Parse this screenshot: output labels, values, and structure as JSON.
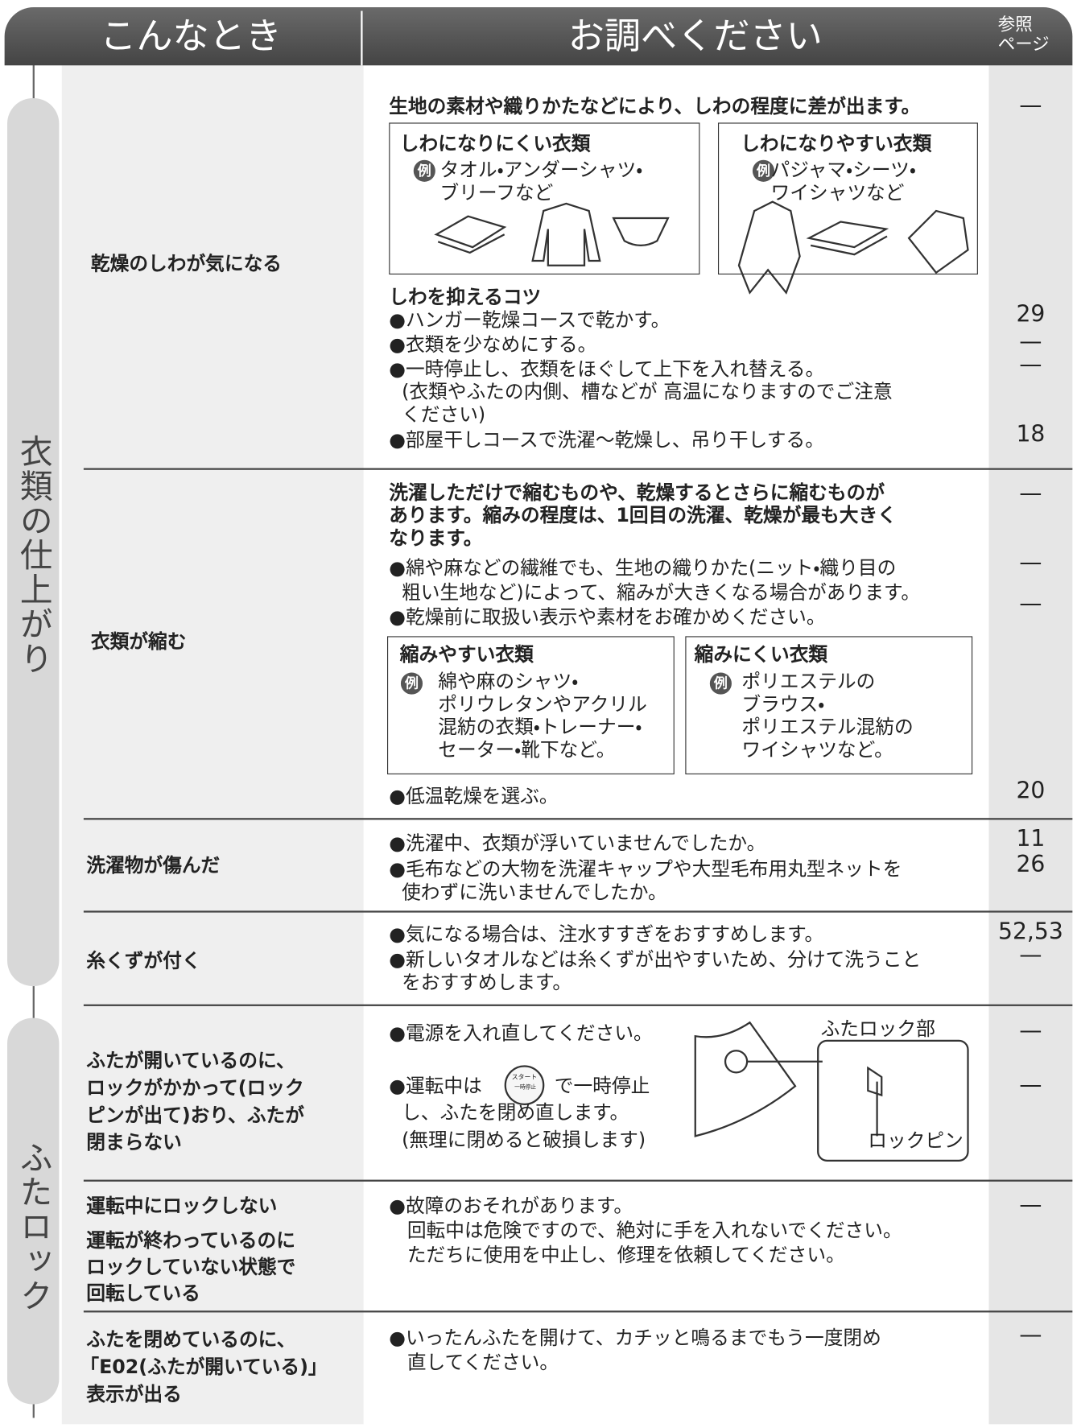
{
  "header": {
    "situation": "こんなとき",
    "check": "お調べください",
    "ref": [
      "参照",
      "ページ"
    ]
  },
  "tabs": [
    "衣類の仕上がり",
    "ふたロック"
  ],
  "rows": [
    {
      "problem": [
        "乾燥のしわが気になる"
      ],
      "intro": [
        "生地の素材や織りかたなどにより、しわの程度に差が出ます。"
      ],
      "boxes": [
        {
          "title": "しわになりにくい衣類",
          "example": "例",
          "lines": [
            "タオル・アンダーシャツ・",
            "ブリーフなど"
          ]
        },
        {
          "title": "しわになりやすい衣類",
          "example": "例",
          "lines": [
            "パジャマ・シーツ・",
            "ワイシャツなど"
          ]
        }
      ],
      "tips_title": "しわを抑えるコツ",
      "items": [
        [
          "●ハンガー乾燥コースで乾かす。"
        ],
        [
          "●衣類を少なめにする。"
        ],
        [
          "●一時停止し、衣類をほぐして上下を入れ替える。",
          "(衣類やふたの内側、槽などが 高温になりますのでご注意",
          "ください)"
        ],
        [
          "●部屋干しコースで洗濯～乾燥し、吊り干しする。"
        ]
      ],
      "refs": [
        "—",
        29,
        "—",
        "—",
        18
      ]
    },
    {
      "problem": [
        "衣類が縮む"
      ],
      "intro": [
        "洗濯しただけで縮むものや、乾燥するとさらに縮むものが",
        "あります。縮みの程度は、1回目の洗濯、乾燥が最も大きく",
        "なります。"
      ],
      "items": [
        [
          "●綿や麻などの繊維でも、生地の織りかた(ニット・織り目の",
          "粗い生地など)によって、縮みが大きくなる場合があります。"
        ],
        [
          "●乾燥前に取扱い表示や素材をお確かめください。"
        ],
        [
          "●低温乾燥を選ぶ。"
        ]
      ],
      "boxes": [
        {
          "title": "縮みやすい衣類",
          "example": "例",
          "lines": [
            "綿や麻のシャツ・",
            "ポリウレタンやアクリル",
            "混紡の衣類・トレーナー・",
            "セーター・靴下など。"
          ]
        },
        {
          "title": "縮みにくい衣類",
          "example": "例",
          "lines": [
            "ポリエステルの",
            "ブラウス・",
            "ポリエステル混紡の",
            "ワイシャツなど。"
          ]
        }
      ],
      "refs": [
        "—",
        "—",
        "—",
        20
      ]
    },
    {
      "problem": [
        "洗濯物が傷んだ"
      ],
      "items": [
        [
          "●洗濯中、衣類が浮いていませんでしたか。"
        ],
        [
          "●毛布などの大物を洗濯キャップや大型毛布用丸型ネットを",
          "使わずに洗いませんでしたか。"
        ]
      ],
      "refs": [
        11,
        26
      ]
    },
    {
      "problem": [
        "糸くずが付く"
      ],
      "items": [
        [
          "●気になる場合は、注水すすぎをおすすめします。"
        ],
        [
          "●新しいタオルなどは糸くずが出やすいため、分けて洗うこと",
          "をおすすめします。"
        ]
      ],
      "refs": [
        "52,53",
        "—"
      ]
    },
    {
      "problem": [
        "ふたが開いているのに、",
        "ロックがかかって(ロック",
        "ピンが出て)おり、ふたが",
        "閉まらない"
      ],
      "items": [
        [
          "●電源を入れ直してください。"
        ],
        [
          "●運転中は",
          "で一時停止",
          "し、ふたを閉め直します。",
          "(無理に閉めると破損します)"
        ]
      ],
      "button": [
        "スタート",
        "一時停止"
      ],
      "figure": {
        "title": "ふたロック部",
        "pin": "ロックピン"
      },
      "refs": [
        "—",
        "—"
      ]
    },
    {
      "problem": [
        "運転中にロックしない"
      ],
      "problem2": [
        "運転が終わっているのに",
        "ロックしていない状態で",
        "回転している"
      ],
      "items": [
        [
          "●故障のおそれがあります。",
          "回転中は危険ですので、絶対に手を入れないでください。",
          "ただちに使用を中止し、修理を依頼してください。"
        ]
      ],
      "refs": [
        "—"
      ]
    },
    {
      "problem": [
        "ふたを閉めているのに、",
        "「E02(ふたが開いている)」",
        "表示が出る"
      ],
      "items": [
        [
          "●いったんふたを開けて、カチッと鳴るまでもう一度閉め",
          "直してください。"
        ]
      ],
      "refs": [
        "—"
      ]
    }
  ]
}
